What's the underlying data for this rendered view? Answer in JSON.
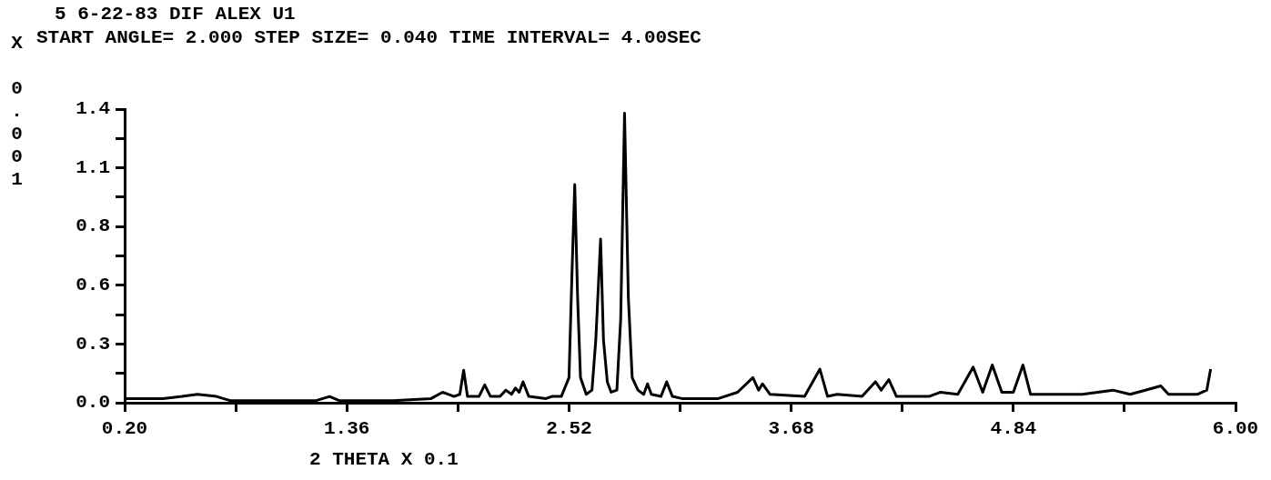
{
  "chart_data": {
    "type": "line",
    "title": "5 6-22-83 DIF ALEX U1",
    "subtitle": "START ANGLE= 2.000 STEP SIZE= 0.040 TIME INTERVAL= 4.00SEC",
    "xlabel": "2 THETA X 0.1",
    "ylabel": "X 0.001",
    "x": [
      0.2,
      0.4,
      0.5,
      0.58,
      0.68,
      0.75,
      1.0,
      1.2,
      1.27,
      1.32,
      1.6,
      1.8,
      1.86,
      1.92,
      1.95,
      1.97,
      1.99,
      2.05,
      2.08,
      2.11,
      2.16,
      2.19,
      2.22,
      2.24,
      2.26,
      2.28,
      2.31,
      2.4,
      2.43,
      2.48,
      2.52,
      2.535,
      2.55,
      2.565,
      2.58,
      2.61,
      2.64,
      2.66,
      2.685,
      2.7,
      2.72,
      2.74,
      2.77,
      2.79,
      2.81,
      2.83,
      2.85,
      2.88,
      2.91,
      2.93,
      2.95,
      3.0,
      3.03,
      3.06,
      3.11,
      3.3,
      3.4,
      3.48,
      3.51,
      3.53,
      3.57,
      3.75,
      3.83,
      3.87,
      3.92,
      4.05,
      4.12,
      4.15,
      4.19,
      4.23,
      4.27,
      4.4,
      4.46,
      4.55,
      4.63,
      4.68,
      4.73,
      4.78,
      4.84,
      4.89,
      4.93,
      5.01,
      5.2,
      5.36,
      5.45,
      5.61,
      5.65,
      5.8,
      5.85,
      5.87
    ],
    "values": [
      0.02,
      0.02,
      0.03,
      0.04,
      0.03,
      0.01,
      0.01,
      0.01,
      0.03,
      0.01,
      0.01,
      0.02,
      0.05,
      0.03,
      0.04,
      0.155,
      0.03,
      0.03,
      0.085,
      0.03,
      0.03,
      0.06,
      0.04,
      0.07,
      0.05,
      0.1,
      0.03,
      0.02,
      0.03,
      0.03,
      0.12,
      0.6,
      1.04,
      0.5,
      0.12,
      0.04,
      0.06,
      0.3,
      0.78,
      0.3,
      0.1,
      0.05,
      0.06,
      0.4,
      1.38,
      0.5,
      0.12,
      0.06,
      0.04,
      0.09,
      0.04,
      0.03,
      0.1,
      0.03,
      0.02,
      0.02,
      0.05,
      0.12,
      0.06,
      0.09,
      0.04,
      0.03,
      0.16,
      0.03,
      0.04,
      0.03,
      0.1,
      0.06,
      0.11,
      0.03,
      0.03,
      0.03,
      0.05,
      0.04,
      0.17,
      0.05,
      0.18,
      0.05,
      0.05,
      0.18,
      0.04,
      0.04,
      0.04,
      0.06,
      0.04,
      0.08,
      0.04,
      0.04,
      0.06,
      0.16
    ],
    "color": "#000000",
    "marker": "none",
    "xlim": [
      0.2,
      6.0
    ],
    "xticks": [
      {
        "value": 0.2,
        "label": "0.20"
      },
      {
        "value": 0.78,
        "label": null
      },
      {
        "value": 1.36,
        "label": "1.36"
      },
      {
        "value": 1.94,
        "label": null
      },
      {
        "value": 2.52,
        "label": "2.52"
      },
      {
        "value": 3.1,
        "label": null
      },
      {
        "value": 3.68,
        "label": "3.68"
      },
      {
        "value": 4.26,
        "label": null
      },
      {
        "value": 4.84,
        "label": "4.84"
      },
      {
        "value": 5.42,
        "label": null
      },
      {
        "value": 6.0,
        "label": "6.00"
      }
    ],
    "ylim": [
      0,
      1.4
    ],
    "yticks": [
      {
        "value": 0,
        "label": "0.0"
      },
      {
        "value": 0.14,
        "label": null
      },
      {
        "value": 0.28,
        "label": "0.3"
      },
      {
        "value": 0.42,
        "label": null
      },
      {
        "value": 0.56,
        "label": "0.6"
      },
      {
        "value": 0.7,
        "label": null
      },
      {
        "value": 0.84,
        "label": "0.8"
      },
      {
        "value": 0.98,
        "label": null
      },
      {
        "value": 1.12,
        "label": "1.1"
      },
      {
        "value": 1.26,
        "label": null
      },
      1.4
    ]
  }
}
